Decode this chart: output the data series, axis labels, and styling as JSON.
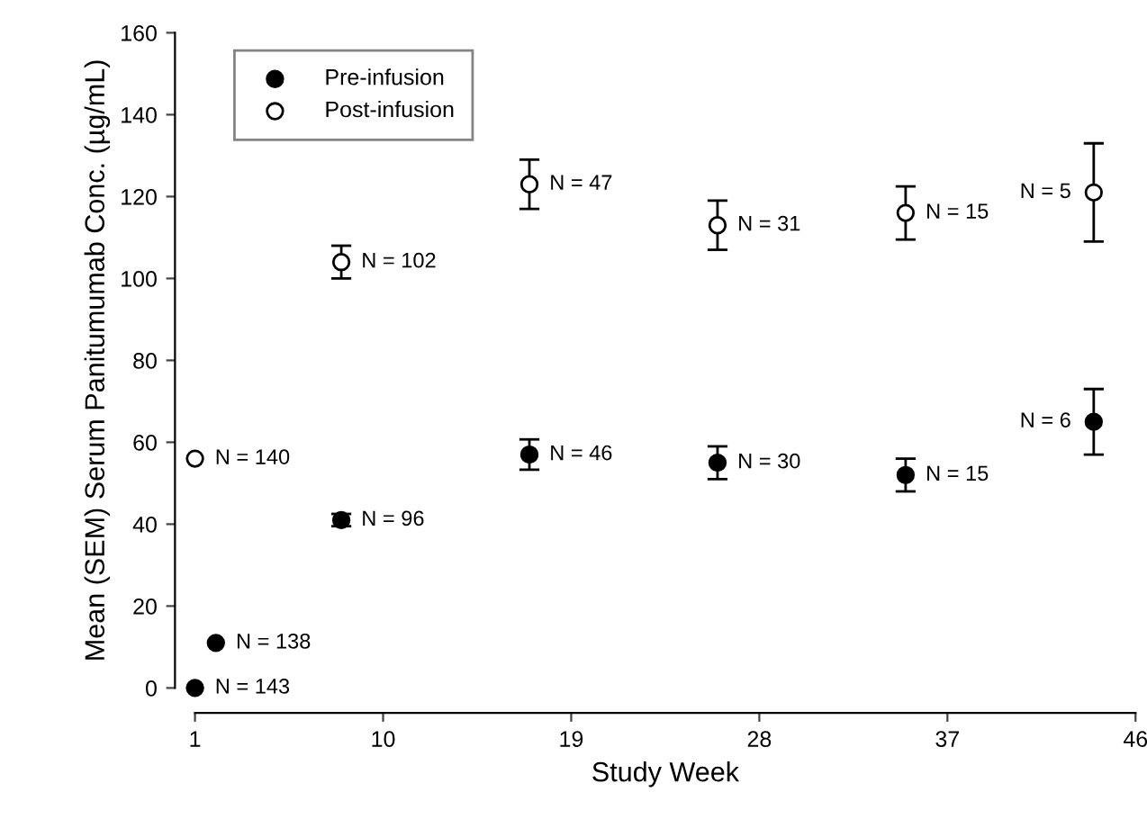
{
  "chart_data": {
    "type": "scatter",
    "xlabel": "Study Week",
    "ylabel": "Mean (SEM) Serum Panitumumab Conc. (µg/mL)",
    "xlim": [
      1,
      46
    ],
    "ylim": [
      0,
      160
    ],
    "xticks": [
      1,
      10,
      19,
      28,
      37,
      46
    ],
    "yticks": [
      0,
      20,
      40,
      60,
      80,
      100,
      120,
      140,
      160
    ],
    "grid": false,
    "legend": "top left",
    "marker": "circle",
    "series": [
      {
        "name": "Pre-infusion",
        "color": "#000000",
        "x": [
          1,
          2,
          8,
          17,
          26,
          35,
          44
        ],
        "values": [
          0,
          11,
          41,
          57,
          55,
          52,
          65
        ],
        "errors": [
          null,
          null,
          1.5,
          3.7,
          4,
          4,
          8
        ]
      },
      {
        "name": "Post-infusion",
        "color": "#ffffff",
        "x": [
          1,
          8,
          17,
          26,
          35,
          44
        ],
        "values": [
          56,
          104,
          123,
          113,
          116,
          121
        ],
        "errors": [
          null,
          4,
          6,
          6,
          6.5,
          12
        ]
      }
    ],
    "annotations": [
      {
        "text": "N = 143",
        "x": 1,
        "y": 0
      },
      {
        "text": "N = 138",
        "x": 2,
        "y": 11
      },
      {
        "text": "N = 96",
        "x": 8,
        "y": 41
      },
      {
        "text": "N = 46",
        "x": 17,
        "y": 57
      },
      {
        "text": "N = 30",
        "x": 26,
        "y": 55
      },
      {
        "text": "N = 15",
        "x": 35,
        "y": 52
      },
      {
        "text": "N = 6",
        "x": 44,
        "y": 65
      },
      {
        "text": "N = 140",
        "x": 1,
        "y": 56
      },
      {
        "text": "N = 102",
        "x": 8,
        "y": 104
      },
      {
        "text": "N = 47",
        "x": 17,
        "y": 123
      },
      {
        "text": "N = 31",
        "x": 26,
        "y": 113
      },
      {
        "text": "N = 15",
        "x": 35,
        "y": 116
      },
      {
        "text": "N = 5",
        "x": 44,
        "y": 121
      }
    ]
  }
}
